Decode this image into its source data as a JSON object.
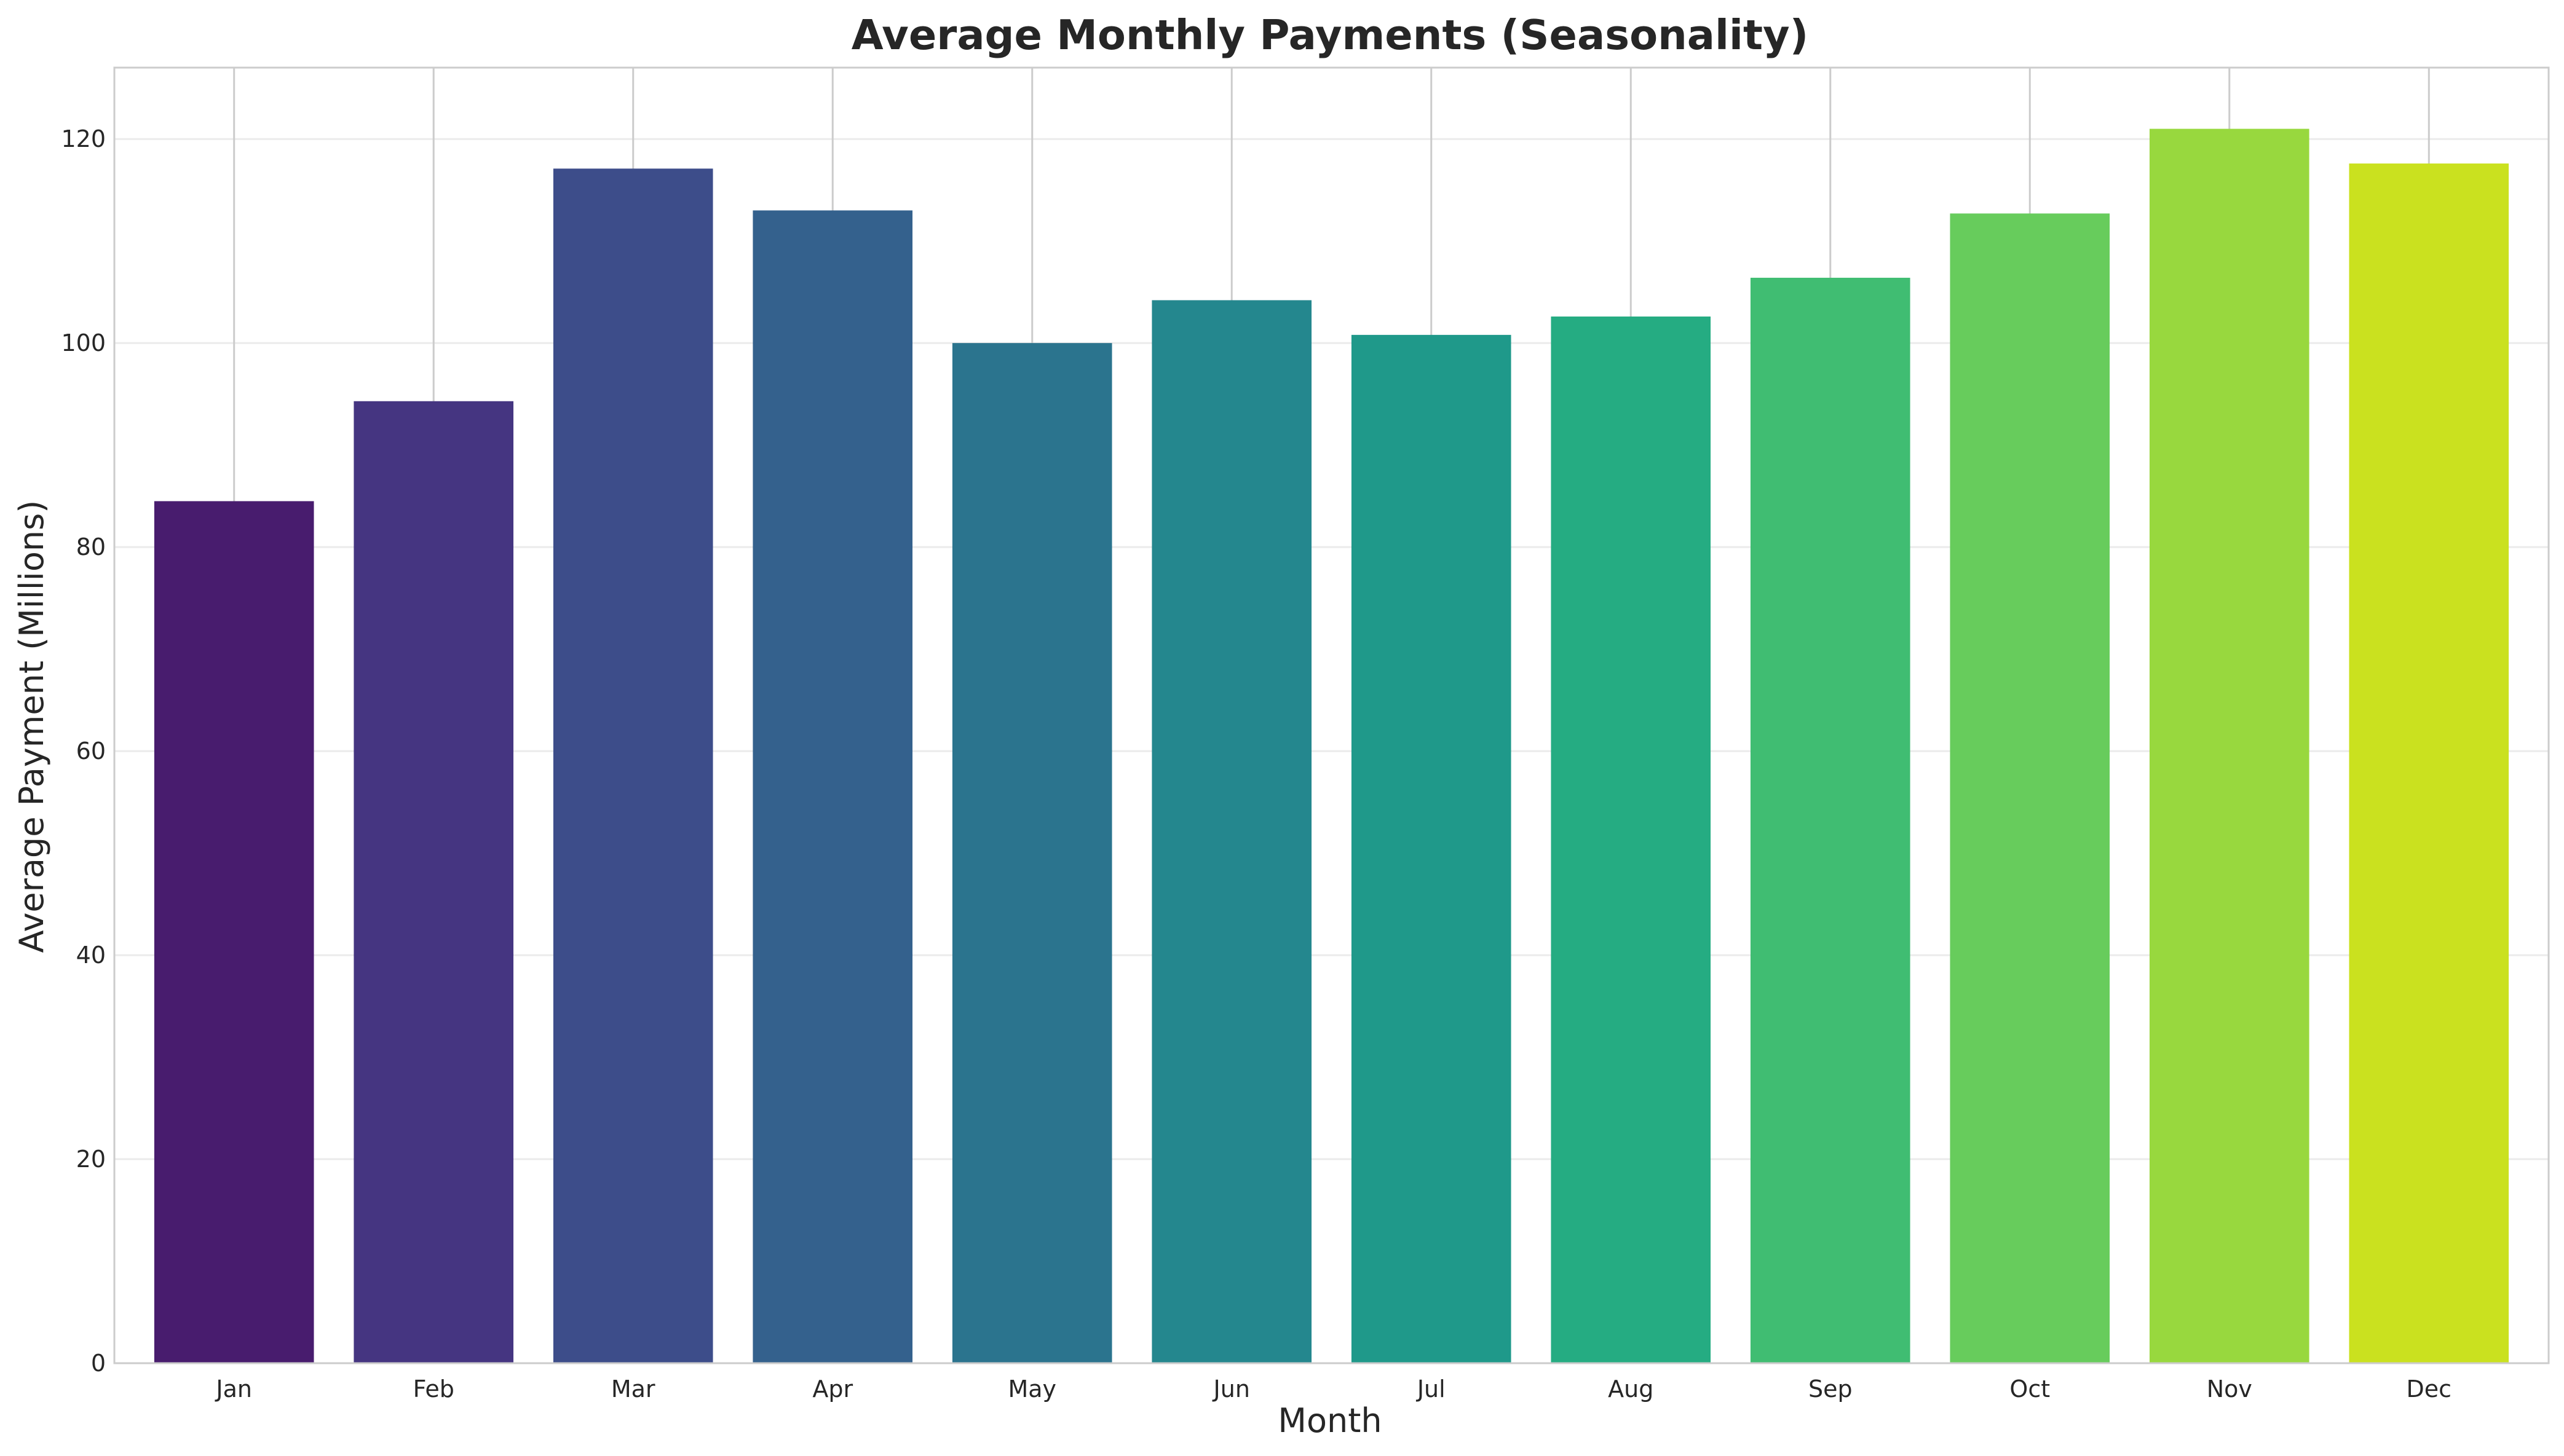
{
  "chart_data": {
    "type": "bar",
    "title": "Average Monthly Payments (Seasonality)",
    "xlabel": "Month",
    "ylabel": "Average Payment (Millions)",
    "categories": [
      "Jan",
      "Feb",
      "Mar",
      "Apr",
      "May",
      "Jun",
      "Jul",
      "Aug",
      "Sep",
      "Oct",
      "Nov",
      "Dec"
    ],
    "values": [
      84.5,
      94.3,
      117.1,
      113.0,
      100.0,
      104.2,
      100.8,
      102.6,
      106.4,
      112.7,
      121.0,
      117.6
    ],
    "colors": [
      "#481C6E",
      "#453581",
      "#3D4D8A",
      "#34618D",
      "#2B748E",
      "#24878E",
      "#1F998A",
      "#25AC82",
      "#40BD72",
      "#67CC5C",
      "#98D83E",
      "#CAE11F"
    ],
    "ylim": [
      0,
      127
    ],
    "yticks": [
      0,
      20,
      40,
      60,
      80,
      100,
      120
    ],
    "grid": true,
    "legend": "none"
  }
}
